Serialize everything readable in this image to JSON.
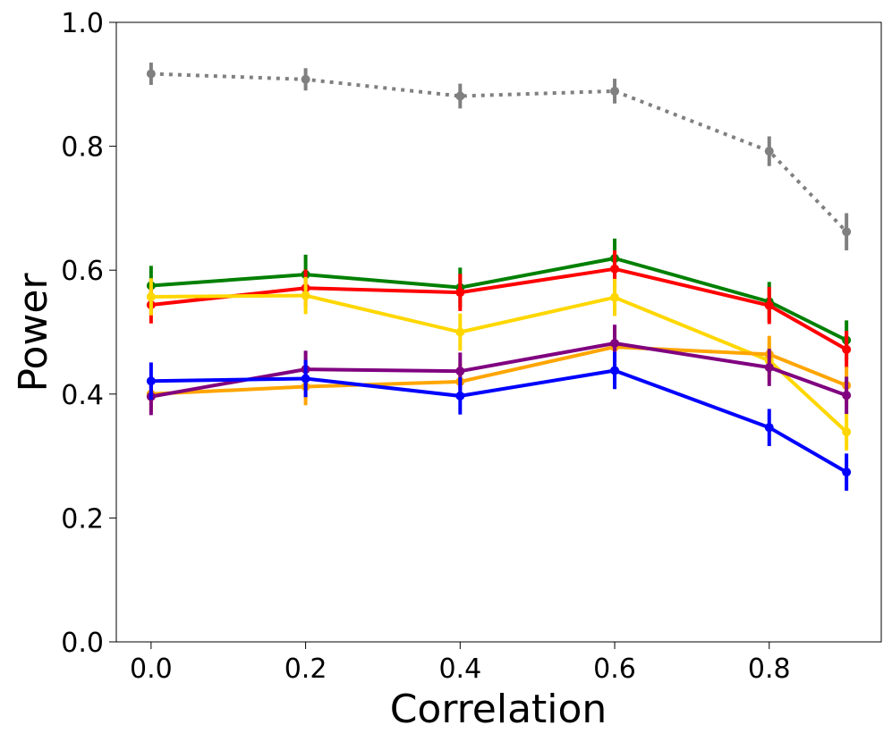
{
  "chart_data": {
    "type": "line",
    "title": "",
    "xlabel": "Correlation",
    "ylabel": "Power",
    "xlim": [
      -0.045,
      0.945
    ],
    "ylim": [
      0.0,
      1.0
    ],
    "x": [
      0.0,
      0.2,
      0.4,
      0.6,
      0.8,
      0.9
    ],
    "xticks": [
      0.0,
      0.2,
      0.4,
      0.6,
      0.8
    ],
    "xtick_labels": [
      "0.0",
      "0.2",
      "0.4",
      "0.6",
      "0.8"
    ],
    "yticks": [
      0.0,
      0.2,
      0.4,
      0.6,
      0.8,
      1.0
    ],
    "ytick_labels": [
      "0.0",
      "0.2",
      "0.4",
      "0.6",
      "0.8",
      "1.0"
    ],
    "legend": "none",
    "grid": false,
    "series": [
      {
        "name": "gray",
        "color": "#808080",
        "dashed": true,
        "values": [
          0.917,
          0.908,
          0.881,
          0.889,
          0.792,
          0.662
        ],
        "errors": [
          0.018,
          0.018,
          0.02,
          0.02,
          0.024,
          0.03
        ]
      },
      {
        "name": "green",
        "color": "#008000",
        "dashed": false,
        "values": [
          0.575,
          0.593,
          0.572,
          0.619,
          0.549,
          0.487
        ],
        "errors": [
          0.032,
          0.032,
          0.032,
          0.032,
          0.032,
          0.032
        ]
      },
      {
        "name": "red",
        "color": "#ff0000",
        "dashed": false,
        "values": [
          0.544,
          0.571,
          0.564,
          0.602,
          0.543,
          0.472
        ],
        "errors": [
          0.03,
          0.03,
          0.03,
          0.03,
          0.03,
          0.03
        ]
      },
      {
        "name": "gold",
        "color": "#ffd700",
        "dashed": false,
        "values": [
          0.557,
          0.559,
          0.5,
          0.556,
          0.454,
          0.339
        ],
        "errors": [
          0.03,
          0.03,
          0.03,
          0.03,
          0.03,
          0.03
        ]
      },
      {
        "name": "orange",
        "color": "#ffa500",
        "dashed": false,
        "values": [
          0.4,
          0.412,
          0.42,
          0.476,
          0.464,
          0.414
        ],
        "errors": [
          0.03,
          0.03,
          0.03,
          0.03,
          0.03,
          0.03
        ]
      },
      {
        "name": "purple",
        "color": "#800080",
        "dashed": false,
        "values": [
          0.396,
          0.44,
          0.437,
          0.482,
          0.443,
          0.398
        ],
        "errors": [
          0.03,
          0.03,
          0.03,
          0.03,
          0.03,
          0.03
        ]
      },
      {
        "name": "blue",
        "color": "#0000ff",
        "dashed": false,
        "values": [
          0.421,
          0.425,
          0.397,
          0.438,
          0.346,
          0.274
        ],
        "errors": [
          0.03,
          0.03,
          0.03,
          0.03,
          0.03,
          0.03
        ]
      }
    ]
  }
}
